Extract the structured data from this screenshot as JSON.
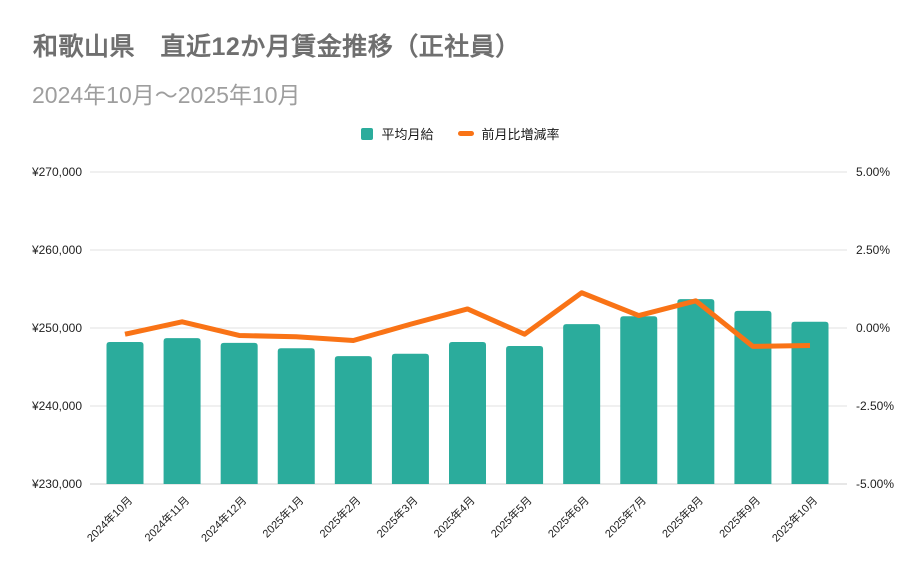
{
  "header": {
    "title": "和歌山県　直近12か月賃金推移（正社員）",
    "subtitle": "2024年10月～2025年10月"
  },
  "legend": {
    "bar_series_label": "平均月給",
    "line_series_label": "前月比増減率"
  },
  "colors": {
    "bar": "#2BAC9C",
    "line": "#F97316",
    "grid": "#E1E1E1",
    "axis_line": "#CFCFCF",
    "axis_text": "#1F1F1F",
    "title_text": "#6F6F6F",
    "subtitle_text": "#9E9E9E"
  },
  "chart_data": {
    "type": "bar",
    "combo": "bar+line",
    "title": "和歌山県　直近12か月賃金推移（正社員）",
    "subtitle": "2024年10月～2025年10月",
    "categories": [
      "2024年10月",
      "2024年11月",
      "2024年12月",
      "2025年1月",
      "2025年2月",
      "2025年3月",
      "2025年4月",
      "2025年5月",
      "2025年6月",
      "2025年7月",
      "2025年8月",
      "2025年9月",
      "2025年10月"
    ],
    "series": [
      {
        "name": "平均月給",
        "type": "bar",
        "axis": "left",
        "unit": "JPY",
        "values": [
          248200,
          248700,
          248100,
          247400,
          246400,
          246700,
          248200,
          247700,
          250500,
          251500,
          253700,
          252200,
          250800
        ]
      },
      {
        "name": "前月比増減率",
        "type": "line",
        "axis": "right",
        "unit": "%",
        "values": [
          -0.2,
          0.2,
          -0.24,
          -0.28,
          -0.4,
          0.12,
          0.61,
          -0.2,
          1.13,
          0.4,
          0.87,
          -0.59,
          -0.56
        ]
      }
    ],
    "left_axis": {
      "min": 230000,
      "max": 270000,
      "ticks": [
        "¥270,000",
        "¥260,000",
        "¥250,000",
        "¥240,000",
        "¥230,000"
      ]
    },
    "right_axis": {
      "min": -5,
      "max": 5,
      "ticks": [
        "5.00%",
        "2.50%",
        "0.00%",
        "-2.50%",
        "-5.00%"
      ]
    },
    "grid": true,
    "legend_position": "top-center"
  }
}
